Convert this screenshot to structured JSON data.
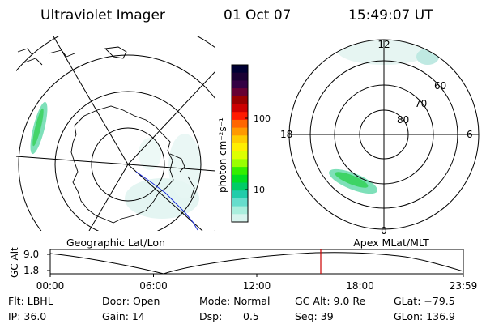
{
  "header": {
    "instrument": "Ultraviolet Imager",
    "date": "01 Oct 07",
    "time": "15:49:07 UT"
  },
  "geo_panel": {
    "caption": "Geographic Lat/Lon"
  },
  "colorbar": {
    "unit_label": "photon cm⁻²s⁻¹",
    "ticks": [
      "100",
      "10"
    ],
    "colors": [
      "#000033",
      "#1a0033",
      "#330044",
      "#660033",
      "#990000",
      "#cc0000",
      "#ff1a00",
      "#ff6600",
      "#ff9900",
      "#ffcc00",
      "#ffee00",
      "#ddff00",
      "#99ff00",
      "#33ee00",
      "#00dd22",
      "#00cc66",
      "#22ccaa",
      "#66ddcc",
      "#aaeedd",
      "#d8f4ee"
    ]
  },
  "mag_panel": {
    "caption": "Apex MLat/MLT",
    "mlt_labels": {
      "top": "12",
      "bottom": "0",
      "left": "18",
      "right": "6"
    },
    "lat_labels": [
      "60",
      "70",
      "80"
    ]
  },
  "altitude_plot": {
    "ylabel": "GC Alt",
    "yticks": [
      "9.0",
      "1.8"
    ],
    "xticks": [
      "00:00",
      "06:00",
      "12:00",
      "18:00",
      "23:59"
    ],
    "current_time_marker": "15:49",
    "marker_color": "#cc0000"
  },
  "status": {
    "flt": "Flt: LBHL",
    "ip": "IP: 36.0",
    "door": "Door: Open",
    "gain": "Gain: 14",
    "mode": "Mode: Normal",
    "dsp_label": "Dsp:",
    "dsp_value": "0.5",
    "gcalt": "GC Alt: 9.0 Re",
    "seq": "Seq: 39",
    "glat": "GLat: −79.5",
    "glon": "GLon: 136.9"
  }
}
